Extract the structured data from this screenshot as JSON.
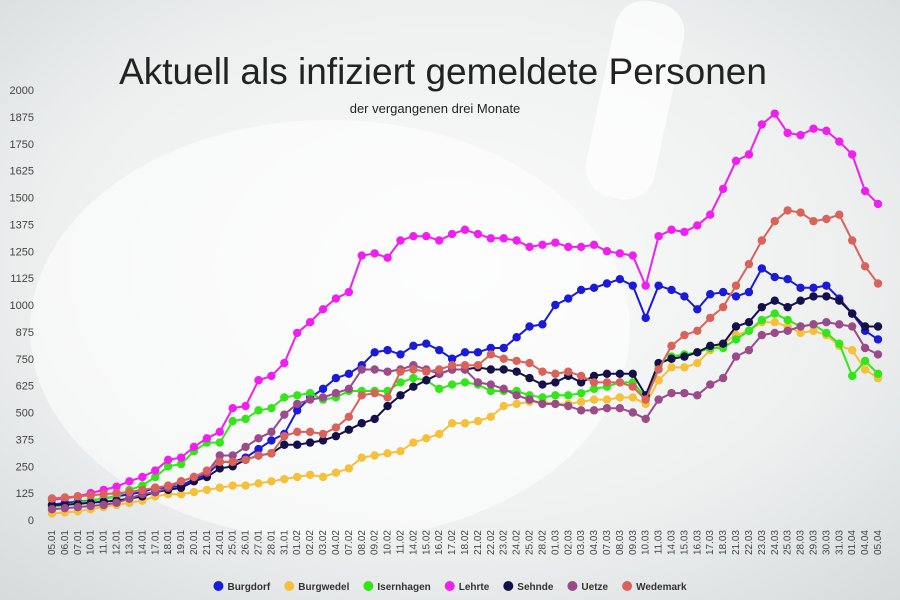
{
  "chart_data": {
    "type": "line",
    "title": "Aktuell als infiziert gemeldete Personen",
    "subtitle": "der vergangenen drei Monate",
    "categories": [
      "05.01",
      "06.01",
      "07.01",
      "10.01",
      "11.01",
      "12.01",
      "13.01",
      "14.01",
      "17.01",
      "18.01",
      "19.01",
      "20.01",
      "21.01",
      "24.01",
      "25.01",
      "26.01",
      "27.01",
      "28.01",
      "31.01",
      "01.02",
      "02.02",
      "03.02",
      "04.02",
      "07.02",
      "08.02",
      "09.02",
      "10.02",
      "11.02",
      "14.02",
      "15.02",
      "16.02",
      "17.02",
      "18.02",
      "21.02",
      "22.02",
      "23.02",
      "24.02",
      "25.02",
      "28.02",
      "01.03",
      "02.03",
      "03.03",
      "04.03",
      "07.03",
      "08.03",
      "09.03",
      "10.03",
      "11.03",
      "14.03",
      "15.03",
      "16.03",
      "17.03",
      "18.03",
      "21.03",
      "22.03",
      "23.03",
      "24.03",
      "25.03",
      "28.03",
      "29.03",
      "30.03",
      "31.03",
      "01.04",
      "04.04",
      "05.04"
    ],
    "ylim": [
      0,
      2000
    ],
    "yticks": [
      0,
      125,
      250,
      375,
      500,
      625,
      750,
      875,
      1000,
      1125,
      1250,
      1375,
      1500,
      1625,
      1750,
      1875,
      2000
    ],
    "grid": false,
    "legend": "bottom",
    "series": [
      {
        "name": "Burgdorf",
        "color": "#1a1adb",
        "values": [
          70,
          80,
          85,
          90,
          100,
          110,
          120,
          130,
          150,
          150,
          160,
          190,
          210,
          270,
          270,
          290,
          330,
          370,
          400,
          510,
          570,
          610,
          660,
          680,
          720,
          780,
          790,
          770,
          810,
          820,
          790,
          750,
          780,
          780,
          800,
          800,
          850,
          900,
          910,
          1000,
          1030,
          1070,
          1080,
          1100,
          1120,
          1090,
          940,
          1090,
          1070,
          1040,
          980,
          1050,
          1060,
          1040,
          1060,
          1170,
          1130,
          1120,
          1080,
          1080,
          1090,
          1030,
          960,
          880,
          840
        ]
      },
      {
        "name": "Burgwedel",
        "color": "#f5c03a",
        "values": [
          30,
          35,
          40,
          50,
          60,
          70,
          80,
          90,
          110,
          120,
          120,
          130,
          140,
          150,
          160,
          160,
          170,
          180,
          190,
          200,
          210,
          200,
          220,
          240,
          290,
          300,
          310,
          320,
          360,
          380,
          400,
          450,
          450,
          460,
          480,
          530,
          540,
          550,
          550,
          540,
          540,
          550,
          560,
          560,
          570,
          570,
          540,
          650,
          710,
          710,
          730,
          790,
          820,
          860,
          880,
          920,
          920,
          900,
          870,
          880,
          860,
          810,
          790,
          700,
          660
        ]
      },
      {
        "name": "Isernhagen",
        "color": "#33e61a",
        "values": [
          60,
          70,
          80,
          90,
          100,
          110,
          140,
          160,
          200,
          250,
          260,
          320,
          360,
          360,
          460,
          470,
          510,
          520,
          570,
          580,
          590,
          560,
          570,
          600,
          600,
          600,
          600,
          640,
          660,
          650,
          610,
          630,
          640,
          630,
          600,
          600,
          600,
          580,
          570,
          580,
          580,
          590,
          610,
          620,
          640,
          640,
          570,
          720,
          760,
          770,
          780,
          800,
          800,
          840,
          880,
          930,
          960,
          930,
          900,
          910,
          870,
          820,
          670,
          740,
          680
        ]
      },
      {
        "name": "Lehrte",
        "color": "#f01ef0",
        "values": [
          95,
          100,
          110,
          125,
          140,
          155,
          180,
          200,
          230,
          280,
          290,
          340,
          380,
          410,
          520,
          530,
          650,
          670,
          730,
          870,
          920,
          980,
          1030,
          1060,
          1230,
          1240,
          1220,
          1300,
          1320,
          1320,
          1300,
          1330,
          1350,
          1330,
          1310,
          1310,
          1300,
          1270,
          1280,
          1290,
          1270,
          1270,
          1280,
          1250,
          1240,
          1230,
          1090,
          1320,
          1350,
          1340,
          1370,
          1420,
          1540,
          1670,
          1700,
          1840,
          1890,
          1800,
          1790,
          1820,
          1810,
          1760,
          1700,
          1530,
          1470
        ]
      },
      {
        "name": "Sehnde",
        "color": "#14104a",
        "values": [
          70,
          70,
          75,
          80,
          85,
          90,
          100,
          110,
          130,
          140,
          150,
          180,
          200,
          240,
          250,
          280,
          300,
          310,
          350,
          350,
          360,
          370,
          390,
          420,
          450,
          470,
          530,
          580,
          620,
          650,
          680,
          700,
          700,
          710,
          700,
          700,
          690,
          660,
          630,
          640,
          670,
          640,
          670,
          680,
          680,
          680,
          580,
          730,
          750,
          760,
          780,
          810,
          820,
          900,
          920,
          990,
          1020,
          990,
          1020,
          1040,
          1040,
          1020,
          960,
          900,
          900
        ]
      },
      {
        "name": "Uetze",
        "color": "#9b4a8a",
        "values": [
          50,
          55,
          60,
          65,
          70,
          80,
          100,
          120,
          130,
          150,
          180,
          200,
          220,
          300,
          300,
          340,
          380,
          410,
          490,
          540,
          560,
          570,
          590,
          610,
          700,
          700,
          690,
          700,
          720,
          700,
          680,
          700,
          700,
          640,
          630,
          610,
          580,
          560,
          540,
          540,
          530,
          510,
          510,
          520,
          520,
          500,
          470,
          560,
          590,
          590,
          580,
          630,
          660,
          760,
          790,
          860,
          870,
          880,
          900,
          910,
          920,
          910,
          900,
          800,
          770
        ]
      },
      {
        "name": "Wedemark",
        "color": "#d9635a",
        "values": [
          100,
          105,
          110,
          115,
          120,
          125,
          130,
          140,
          150,
          160,
          180,
          200,
          230,
          270,
          270,
          280,
          300,
          310,
          390,
          410,
          410,
          400,
          430,
          480,
          580,
          590,
          570,
          690,
          700,
          690,
          700,
          720,
          720,
          720,
          770,
          750,
          740,
          730,
          690,
          680,
          690,
          670,
          640,
          640,
          640,
          620,
          560,
          700,
          810,
          860,
          880,
          940,
          990,
          1090,
          1190,
          1300,
          1390,
          1440,
          1430,
          1390,
          1400,
          1420,
          1300,
          1180,
          1100
        ]
      }
    ]
  }
}
